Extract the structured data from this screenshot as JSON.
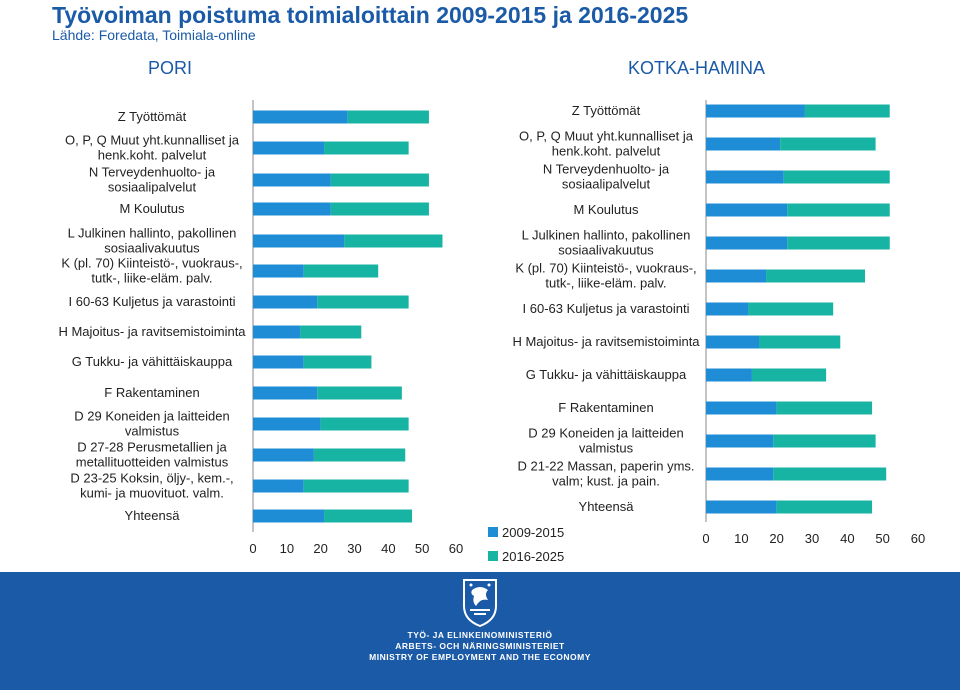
{
  "header": {
    "title": "Työvoiman poistuma toimialoittain  2009-2015 ja 2016-2025",
    "subtitle": "Lähde: Foredata, Toimiala-online"
  },
  "colors": {
    "series_2009": "#1f8dd6",
    "series_2016": "#17b3a3",
    "title": "#1a5aa6",
    "footer": "#1a5aa6"
  },
  "legend": [
    "2009-2015",
    "2016-2025"
  ],
  "footer": {
    "line1": "TYÖ- JA ELINKEINOMINISTERIÖ",
    "line2": "ARBETS- OCH NÄRINGSMINISTERIET",
    "line3": "MINISTRY OF EMPLOYMENT AND THE ECONOMY",
    "logo": "lion-crest-icon"
  },
  "chart_data": [
    {
      "type": "bar",
      "orientation": "horizontal",
      "stacked": true,
      "title": "PORI",
      "xlim": [
        0,
        60
      ],
      "xticks": [
        "0",
        "10",
        "20",
        "30",
        "40",
        "50",
        "60"
      ],
      "categories": [
        "Z Työttömät",
        "O, P, Q Muut yht.kunnalliset ja henk.koht. palvelut",
        "N Terveydenhuolto- ja sosiaalipalvelut",
        "M Koulutus",
        "L Julkinen hallinto, pakollinen sosiaalivakuutus",
        "K (pl. 70) Kiinteistö-, vuokraus-, tutk-, liike-eläm. palv.",
        "I 60-63 Kuljetus ja varastointi",
        "H Majoitus- ja ravitsemistoiminta",
        "G Tukku- ja vähittäiskauppa",
        "F Rakentaminen",
        "D 29 Koneiden ja laitteiden valmistus",
        "D 27-28 Perusmetallien ja metallituotteiden valmistus",
        "D 23-25 Koksin, öljy-, kem.-, kumi- ja muovituot. valm.",
        "Yhteensä"
      ],
      "label_lines": [
        [
          "Z Työttömät"
        ],
        [
          "O, P, Q Muut yht.kunnalliset ja",
          "henk.koht. palvelut"
        ],
        [
          "N Terveydenhuolto- ja",
          "sosiaalipalvelut"
        ],
        [
          "M Koulutus"
        ],
        [
          "L Julkinen hallinto, pakollinen",
          "sosiaalivakuutus"
        ],
        [
          "K (pl. 70) Kiinteistö-, vuokraus-,",
          "tutk-, liike-eläm. palv."
        ],
        [
          "I 60-63 Kuljetus ja varastointi"
        ],
        [
          "H Majoitus- ja ravitsemistoiminta"
        ],
        [
          "G Tukku- ja vähittäiskauppa"
        ],
        [
          "F Rakentaminen"
        ],
        [
          "D 29 Koneiden ja laitteiden",
          "valmistus"
        ],
        [
          "D 27-28 Perusmetallien ja",
          "metallituotteiden valmistus"
        ],
        [
          "D 23-25 Koksin, öljy-, kem.-,",
          "kumi- ja muovituot. valm."
        ],
        [
          "Yhteensä"
        ]
      ],
      "series": [
        {
          "name": "2009-2015",
          "values": [
            28,
            21,
            23,
            23,
            27,
            15,
            19,
            14,
            15,
            19,
            20,
            18,
            15,
            21
          ]
        },
        {
          "name": "2016-2025",
          "values": [
            24,
            25,
            29,
            29,
            29,
            22,
            27,
            18,
            20,
            25,
            26,
            27,
            31,
            26
          ]
        }
      ]
    },
    {
      "type": "bar",
      "orientation": "horizontal",
      "stacked": true,
      "title": "KOTKA-HAMINA",
      "xlim": [
        0,
        60
      ],
      "xticks": [
        "0",
        "10",
        "20",
        "30",
        "40",
        "50",
        "60"
      ],
      "categories": [
        "Z Työttömät",
        "O, P, Q Muut yht.kunnalliset ja henk.koht. palvelut",
        "N Terveydenhuolto- ja sosiaalipalvelut",
        "M Koulutus",
        "L Julkinen hallinto, pakollinen sosiaalivakuutus",
        "K (pl. 70) Kiinteistö-, vuokraus-, tutk-, liike-eläm. palv.",
        "I 60-63 Kuljetus ja varastointi",
        "H Majoitus- ja ravitsemistoiminta",
        "G Tukku- ja vähittäiskauppa",
        "F Rakentaminen",
        "D 29 Koneiden ja laitteiden valmistus",
        "D 21-22 Massan, paperin yms. valm; kust. ja pain.",
        "Yhteensä"
      ],
      "label_lines": [
        [
          "Z Työttömät"
        ],
        [
          "O, P, Q Muut yht.kunnalliset ja",
          "henk.koht. palvelut"
        ],
        [
          "N Terveydenhuolto- ja",
          "sosiaalipalvelut"
        ],
        [
          "M Koulutus"
        ],
        [
          "L Julkinen hallinto, pakollinen",
          "sosiaalivakuutus"
        ],
        [
          "K (pl. 70) Kiinteistö-, vuokraus-,",
          "tutk-, liike-eläm. palv."
        ],
        [
          "I 60-63 Kuljetus ja varastointi"
        ],
        [
          "H Majoitus- ja ravitsemistoiminta"
        ],
        [
          "G Tukku- ja vähittäiskauppa"
        ],
        [
          "F Rakentaminen"
        ],
        [
          "D 29 Koneiden ja laitteiden",
          "valmistus"
        ],
        [
          "D 21-22 Massan, paperin yms.",
          "valm; kust. ja pain."
        ],
        [
          "Yhteensä"
        ]
      ],
      "series": [
        {
          "name": "2009-2015",
          "values": [
            28,
            21,
            22,
            23,
            23,
            17,
            12,
            15,
            13,
            20,
            19,
            19,
            20
          ]
        },
        {
          "name": "2016-2025",
          "values": [
            24,
            27,
            30,
            29,
            29,
            28,
            24,
            23,
            21,
            27,
            29,
            32,
            27
          ]
        }
      ]
    }
  ]
}
